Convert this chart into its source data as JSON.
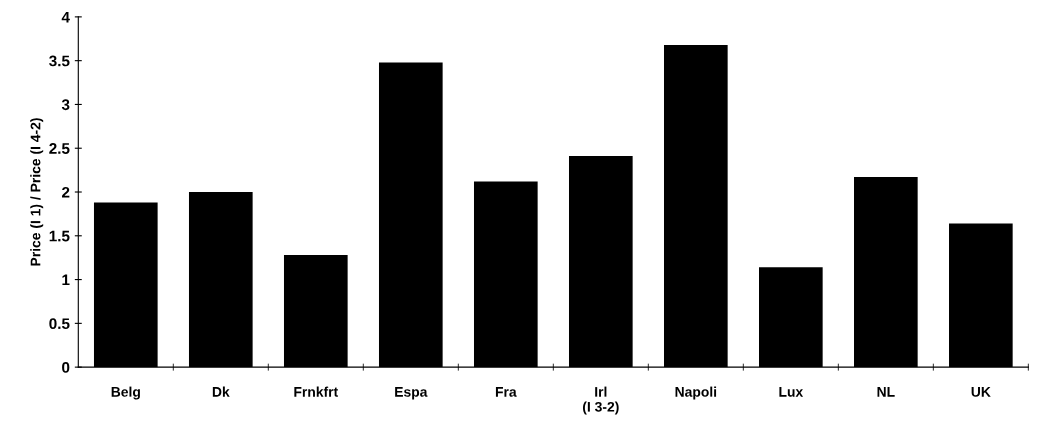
{
  "chart_data": {
    "type": "bar",
    "ylabel": "Price (I 1) / Price (I 4-2)",
    "categories": [
      "Belg",
      "Dk",
      "Frnkfrt",
      "Espa",
      "Fra",
      "Irl\n(I 3-2)",
      "Napoli",
      "Lux",
      "NL",
      "UK"
    ],
    "values": [
      1.88,
      2.0,
      1.28,
      3.48,
      2.12,
      2.41,
      3.68,
      1.14,
      2.17,
      1.64
    ],
    "color": "#000000",
    "ylim": [
      0,
      4
    ],
    "yticks": [
      0,
      0.5,
      1,
      1.5,
      2,
      2.5,
      3,
      3.5,
      4
    ],
    "grid": false
  }
}
